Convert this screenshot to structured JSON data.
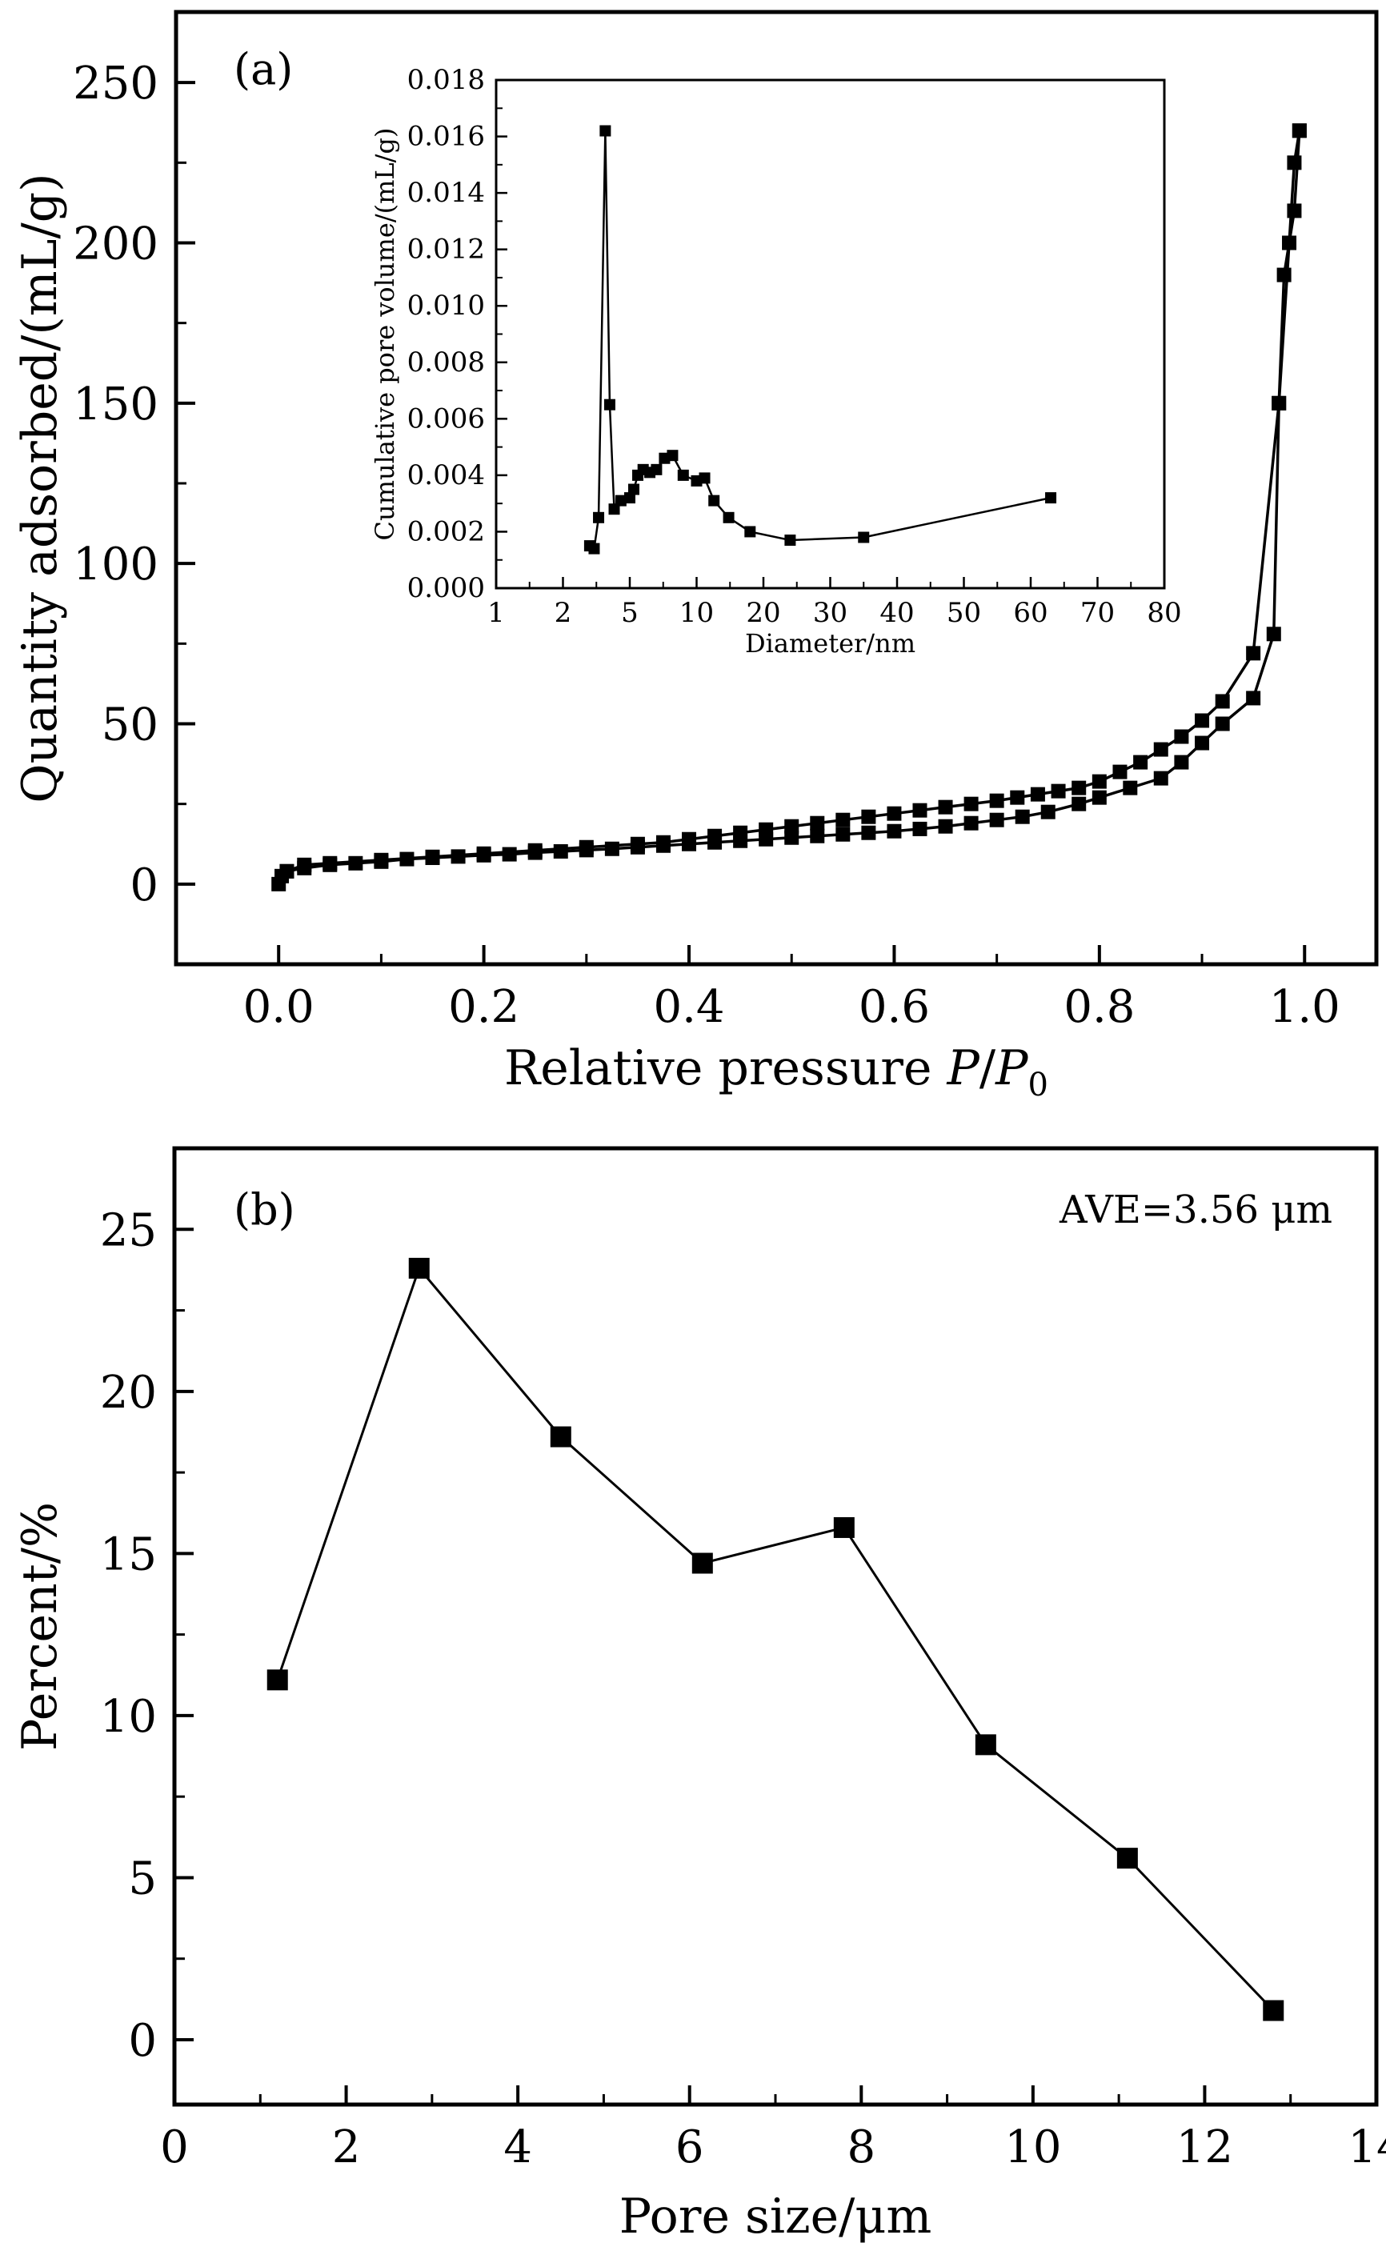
{
  "chart_data": [
    {
      "panel_label": "(a)",
      "type": "line",
      "xlabel": "Relative pressure P/P0",
      "xlabel_parts": {
        "main": "Relative pressure ",
        "italic": "P",
        "slash": "/",
        "italic2": "P",
        "subscript": "0"
      },
      "ylabel": "Quantity adsorbed/(mL/g)",
      "xlim": [
        -0.1,
        1.07
      ],
      "ylim": [
        -25,
        272
      ],
      "xticks": [
        "0.0",
        "0.2",
        "0.4",
        "0.6",
        "0.8",
        "1.0"
      ],
      "xtick_values": [
        0.0,
        0.2,
        0.4,
        0.6,
        0.8,
        1.0
      ],
      "yticks": [
        "0",
        "50",
        "100",
        "150",
        "200",
        "250"
      ],
      "ytick_values": [
        0,
        50,
        100,
        150,
        200,
        250
      ],
      "grid": false,
      "series": [
        {
          "x": [
            0.0,
            0.003,
            0.008,
            0.025,
            0.05,
            0.075,
            0.1,
            0.125,
            0.15,
            0.175,
            0.2,
            0.225,
            0.25,
            0.275,
            0.3,
            0.325,
            0.35,
            0.375,
            0.4,
            0.425,
            0.45,
            0.475,
            0.5,
            0.525,
            0.55,
            0.575,
            0.6,
            0.625,
            0.65,
            0.675,
            0.7,
            0.725,
            0.75,
            0.78,
            0.8,
            0.83,
            0.86,
            0.88,
            0.9,
            0.92,
            0.95,
            0.97,
            0.975,
            0.98,
            0.99,
            0.995
          ],
          "y": [
            0,
            2.5,
            4,
            5,
            6,
            6.5,
            7,
            7.8,
            8.2,
            8.6,
            9,
            9.3,
            9.8,
            10.2,
            10.6,
            11,
            11.5,
            12,
            12.5,
            13,
            13.5,
            14,
            14.5,
            15,
            15.5,
            16,
            16.5,
            17.2,
            18,
            19,
            20,
            21,
            22.5,
            25,
            27,
            30,
            33,
            38,
            44,
            50,
            58,
            78,
            150,
            190,
            210,
            235
          ]
        },
        {
          "x": [
            0.995,
            0.99,
            0.985,
            0.975,
            0.95,
            0.92,
            0.9,
            0.88,
            0.86,
            0.84,
            0.82,
            0.8,
            0.78,
            0.76,
            0.74,
            0.72,
            0.7,
            0.675,
            0.65,
            0.625,
            0.6,
            0.575,
            0.55,
            0.525,
            0.5,
            0.475,
            0.45,
            0.425,
            0.4,
            0.375,
            0.35,
            0.3,
            0.25,
            0.2,
            0.15,
            0.1,
            0.05,
            0.025,
            0.008
          ],
          "y": [
            235,
            225,
            200,
            150,
            72,
            57,
            51,
            46,
            42,
            38,
            35,
            32,
            30,
            29,
            28,
            27,
            26,
            25,
            24,
            23,
            22,
            21,
            20,
            19,
            18,
            17,
            16,
            15,
            14,
            13,
            12.5,
            11.5,
            10.5,
            9.5,
            8.5,
            7.5,
            6.5,
            6,
            4
          ]
        }
      ],
      "inset": {
        "type": "line",
        "xlabel": "Diameter/nm",
        "ylabel": "Cumulative pore volume/(mL/g)",
        "xticks": [
          "1",
          "2",
          "5",
          "10",
          "20",
          "30",
          "40",
          "50",
          "60",
          "70",
          "80"
        ],
        "xtick_values": [
          1,
          2,
          5,
          10,
          20,
          30,
          40,
          50,
          60,
          70,
          80
        ],
        "yticks": [
          "0.000",
          "0.002",
          "0.004",
          "0.006",
          "0.008",
          "0.010",
          "0.012",
          "0.014",
          "0.016",
          "0.018"
        ],
        "ytick_values": [
          0,
          0.002,
          0.004,
          0.006,
          0.008,
          0.01,
          0.012,
          0.014,
          0.016,
          0.018
        ],
        "ylim": [
          0,
          0.018
        ],
        "x": [
          3.2,
          3.4,
          3.6,
          3.9,
          4.1,
          4.3,
          4.6,
          5.0,
          5.3,
          5.6,
          6.0,
          6.5,
          7.0,
          7.6,
          8.2,
          9.0,
          10.0,
          11.2,
          12.6,
          14.8,
          18.0,
          24.0,
          35.0,
          63.0
        ],
        "y": [
          0.0015,
          0.0014,
          0.0025,
          0.0162,
          0.0065,
          0.0028,
          0.0031,
          0.0032,
          0.0035,
          0.004,
          0.0042,
          0.0041,
          0.0042,
          0.0046,
          0.0047,
          0.004,
          0.0038,
          0.0039,
          0.0031,
          0.0025,
          0.002,
          0.0017,
          0.0018,
          0.0032
        ]
      }
    },
    {
      "panel_label": "(b)",
      "type": "line",
      "xlabel": "Pore size/μm",
      "ylabel": "Percent/%",
      "annotation": "AVE=3.56 μm",
      "xlim": [
        0,
        14
      ],
      "ylim": [
        -2.0,
        27.5
      ],
      "xticks": [
        "0",
        "2",
        "4",
        "6",
        "8",
        "10",
        "12",
        "14"
      ],
      "xtick_values": [
        0,
        2,
        4,
        6,
        8,
        10,
        12,
        14
      ],
      "yticks": [
        "0",
        "5",
        "10",
        "15",
        "20",
        "25"
      ],
      "ytick_values": [
        0,
        5,
        10,
        15,
        20,
        25
      ],
      "grid": false,
      "x": [
        1.2,
        2.85,
        4.5,
        6.15,
        7.8,
        9.45,
        11.1,
        12.8
      ],
      "y": [
        11.1,
        23.8,
        18.6,
        14.7,
        15.8,
        9.1,
        5.6,
        0.9
      ]
    }
  ]
}
